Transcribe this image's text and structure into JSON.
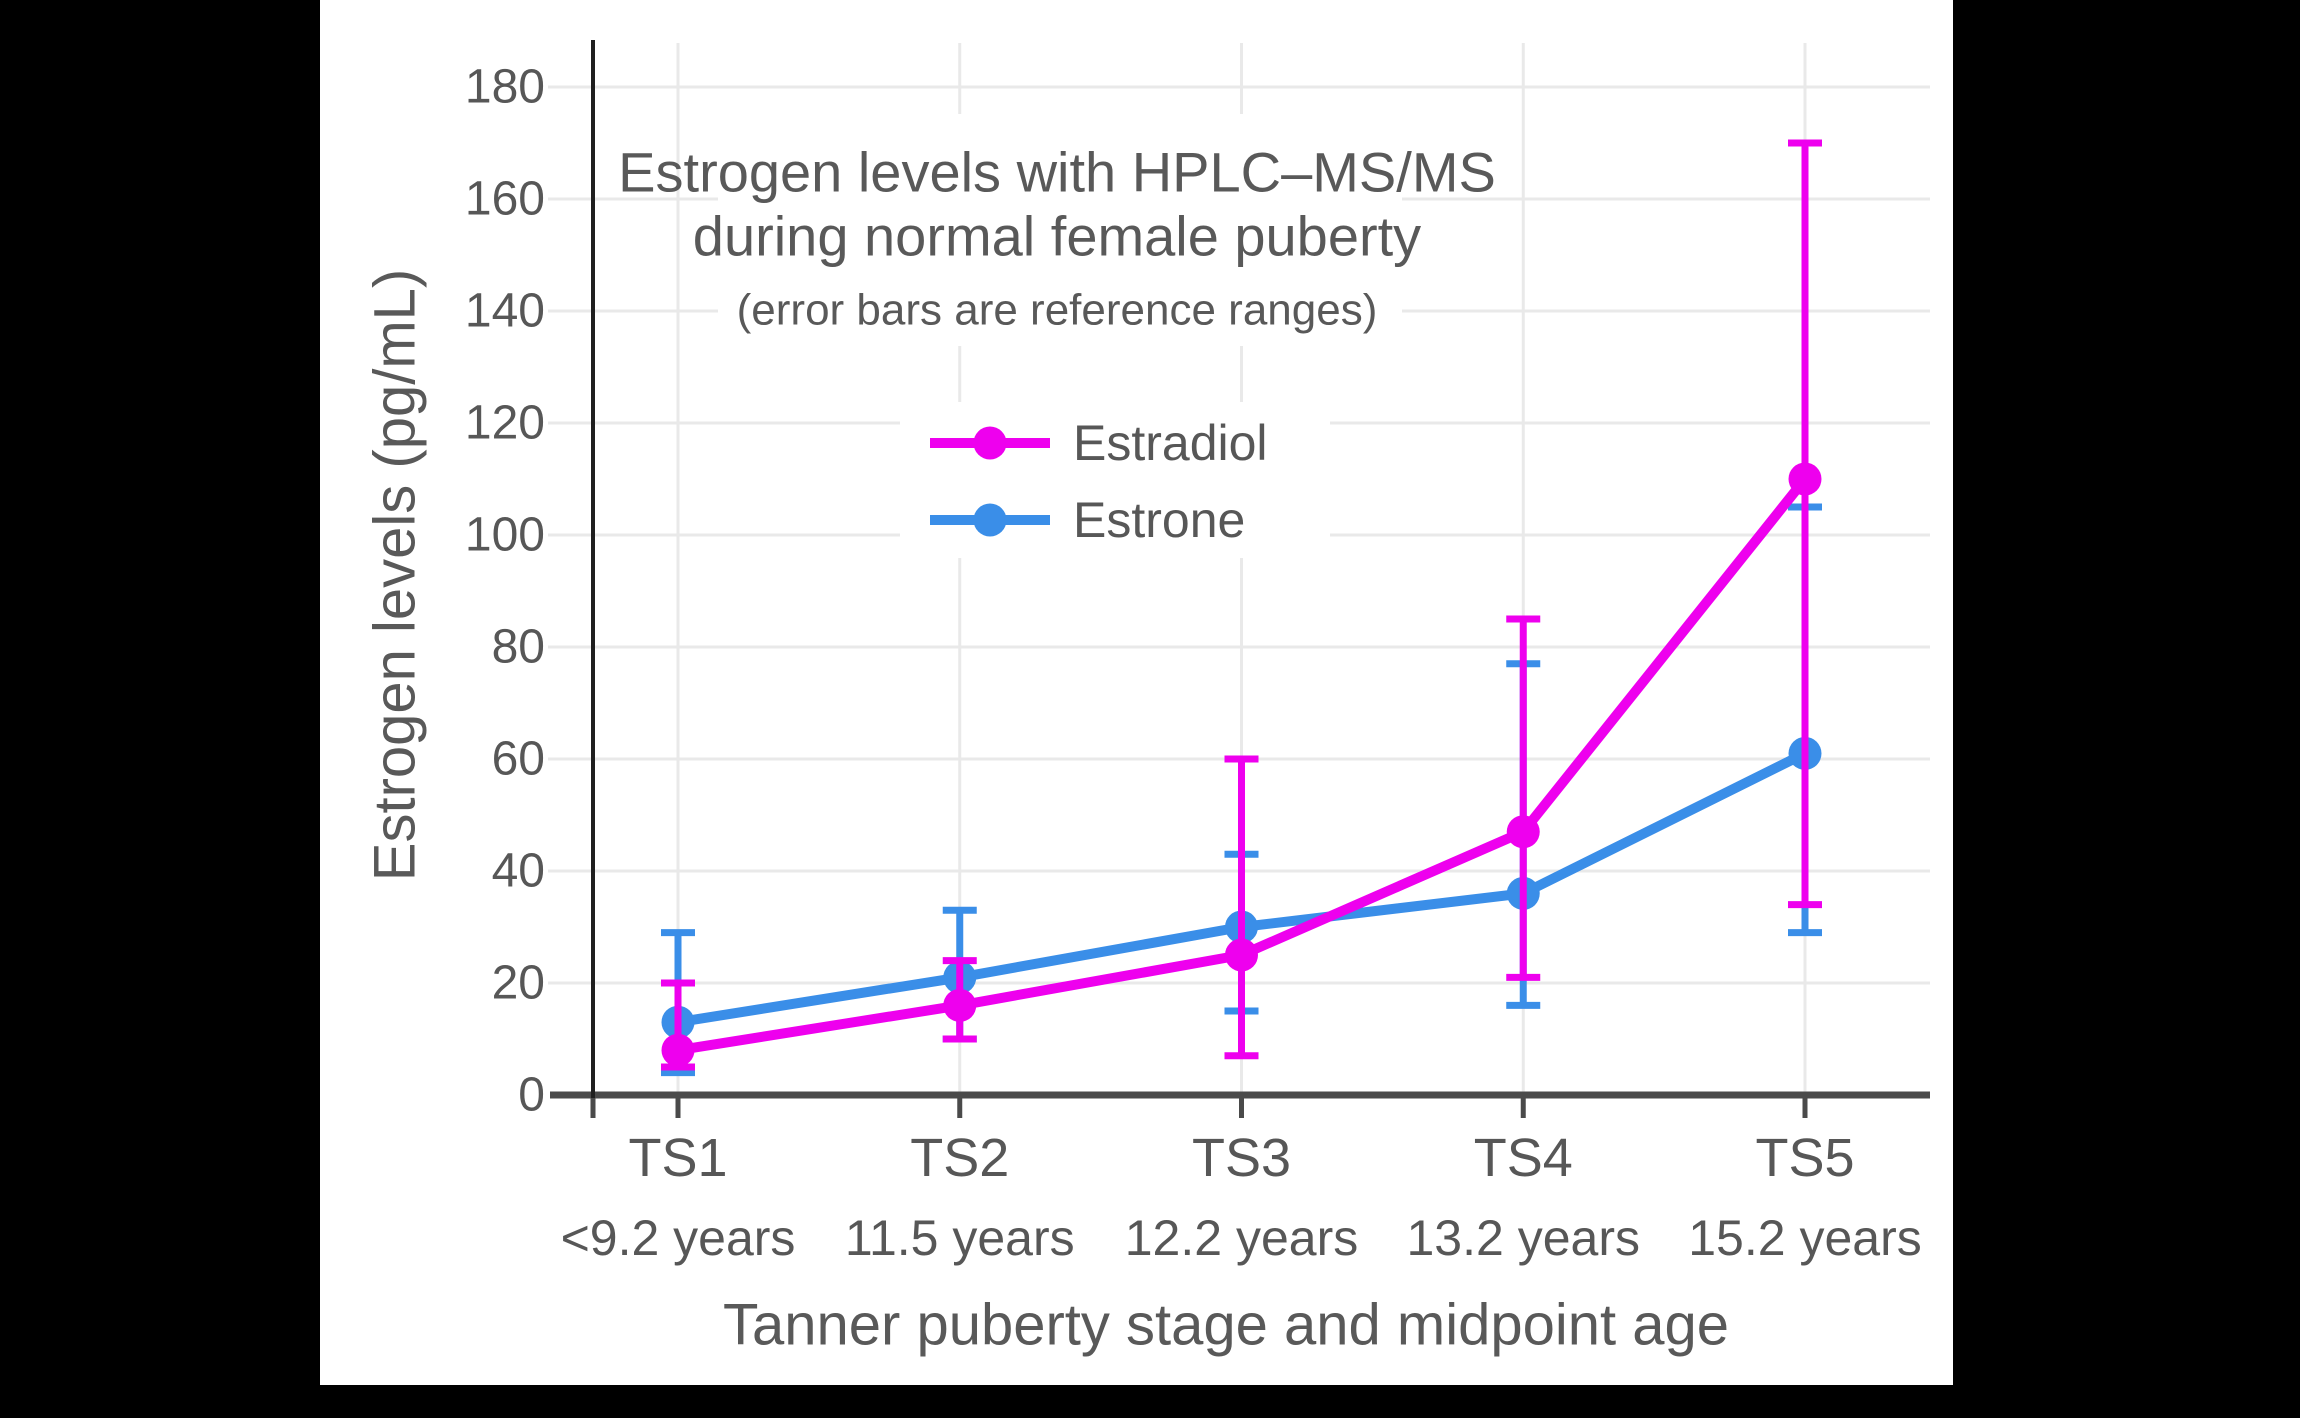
{
  "title": {
    "line1": "Estrogen levels with HPLC–MS/MS",
    "line2": "during normal female puberty",
    "subtitle": "(error bars are reference ranges)"
  },
  "axes": {
    "y": {
      "label": "Estrogen levels (pg/mL)",
      "ticks": [
        0,
        20,
        40,
        60,
        80,
        100,
        120,
        140,
        160,
        180
      ]
    },
    "x": {
      "label": "Tanner puberty stage and midpoint age",
      "categories": [
        "TS1",
        "TS2",
        "TS3",
        "TS4",
        "TS5"
      ],
      "sublabels": [
        "<9.2 years",
        "11.5 years",
        "12.2 years",
        "13.2 years",
        "15.2 years"
      ]
    }
  },
  "legend": {
    "items": [
      {
        "label": "Estradiol",
        "color": "#ee00ee"
      },
      {
        "label": "Estrone",
        "color": "#3a8ee8"
      }
    ]
  },
  "colors": {
    "background": "#000000",
    "panel": "#ffffff",
    "grid": "#e9e9e9",
    "x_axis": "#4a4a4a",
    "y_axis": "#1f1f1f",
    "text": "#575757",
    "title_text": "#595959",
    "estradiol": "#ee00ee",
    "estrone": "#3a8ee8"
  },
  "chart_data": {
    "type": "line",
    "title": "Estrogen levels with HPLC–MS/MS during normal female puberty",
    "subtitle": "(error bars are reference ranges)",
    "xlabel": "Tanner puberty stage and midpoint age",
    "ylabel": "Estrogen levels (pg/mL)",
    "categories": [
      "TS1",
      "TS2",
      "TS3",
      "TS4",
      "TS5"
    ],
    "category_sublabels": [
      "<9.2 years",
      "11.5 years",
      "12.2 years",
      "13.2 years",
      "15.2 years"
    ],
    "ylim": [
      0,
      188
    ],
    "ytick_step": 20,
    "grid": true,
    "legend_position": "inside-upper-center",
    "error_bars": "reference ranges",
    "series": [
      {
        "name": "Estrone",
        "color": "#3a8ee8",
        "values": [
          13,
          21,
          30,
          36,
          61
        ],
        "error_low": [
          4,
          10,
          15,
          16,
          29
        ],
        "error_high": [
          29,
          33,
          43,
          77,
          105
        ]
      },
      {
        "name": "Estradiol",
        "color": "#ee00ee",
        "values": [
          8,
          16,
          25,
          47,
          110
        ],
        "error_low": [
          5,
          10,
          7,
          21,
          34
        ],
        "error_high": [
          20,
          24,
          60,
          85,
          170
        ]
      }
    ]
  }
}
